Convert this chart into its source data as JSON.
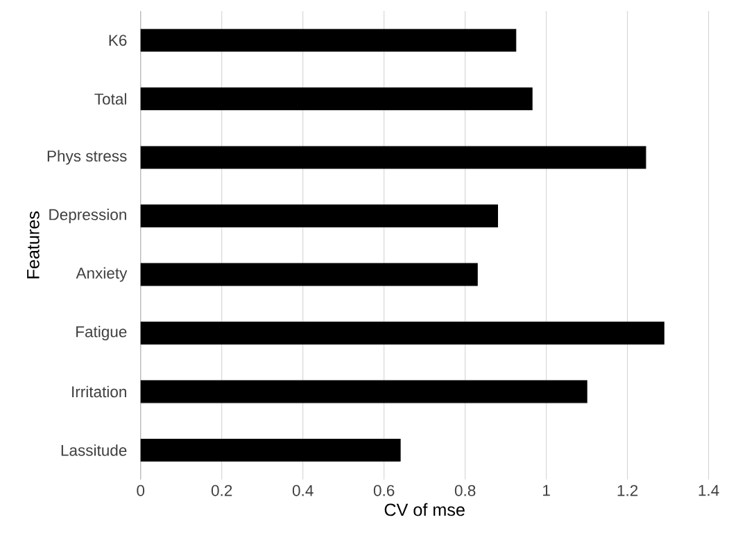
{
  "chart_data": {
    "type": "bar",
    "orientation": "horizontal",
    "xlabel": "CV of mse",
    "ylabel": "Features",
    "categories": [
      "K6",
      "Total",
      "Phys stress",
      "Depression",
      "Anxiety",
      "Fatigue",
      "Irritation",
      "Lassitude"
    ],
    "values": [
      0.925,
      0.965,
      1.245,
      0.88,
      0.83,
      1.29,
      1.1,
      0.64
    ],
    "color": "#000000",
    "xlim": [
      0,
      1.4
    ],
    "xticks": [
      0,
      0.2,
      0.4,
      0.6,
      0.8,
      1,
      1.2,
      1.4
    ],
    "grid": "x"
  }
}
